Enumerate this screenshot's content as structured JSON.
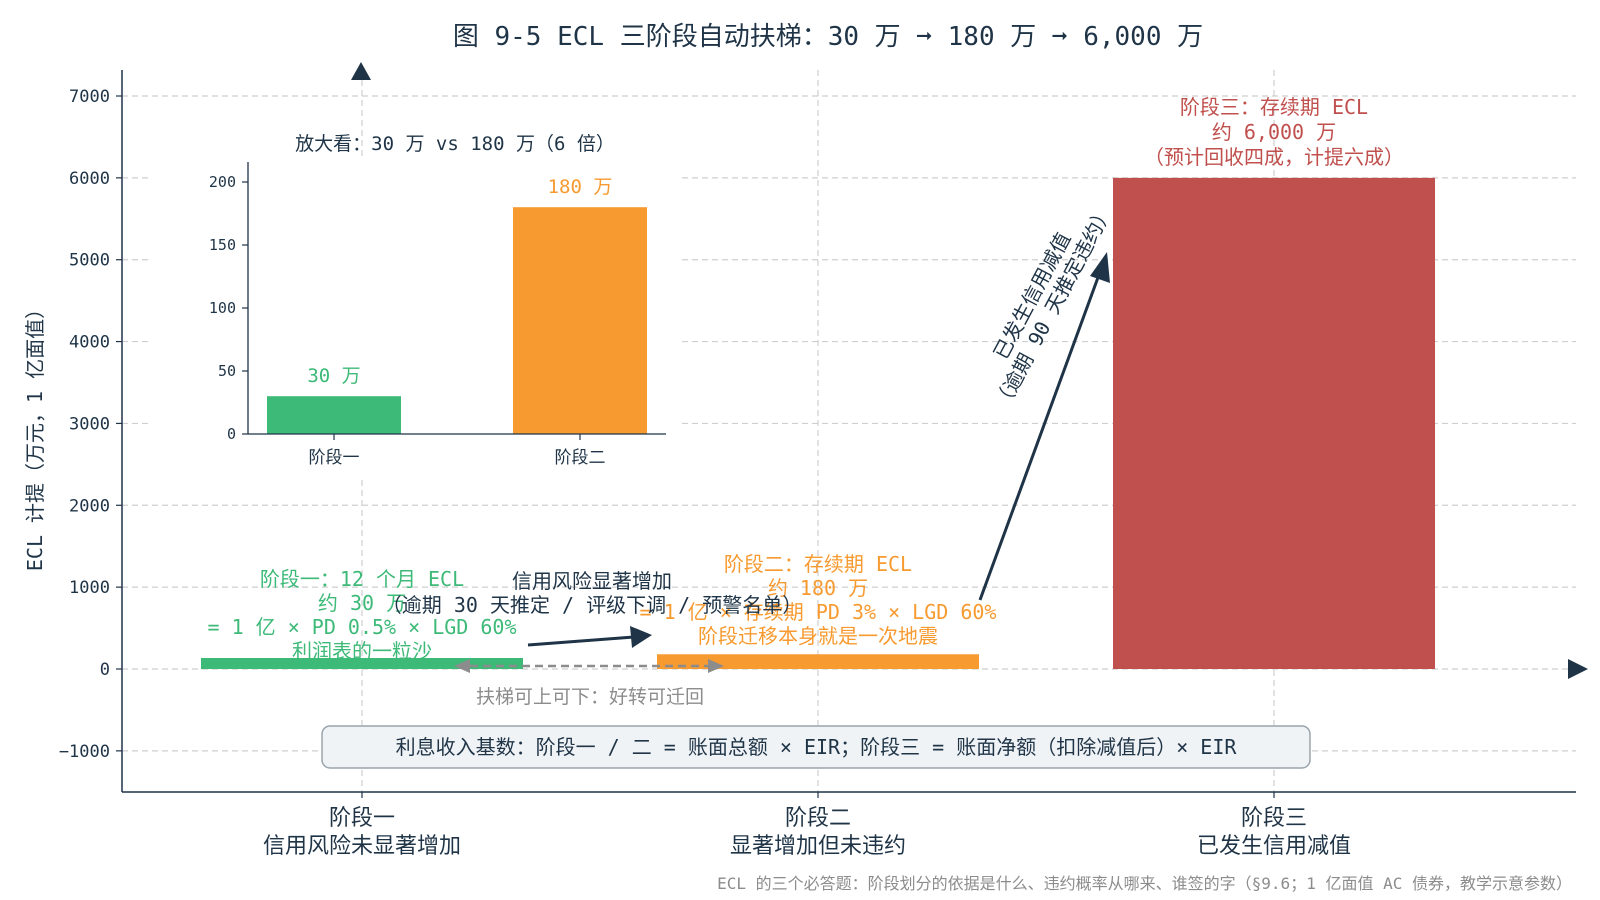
{
  "chart_data": [
    {
      "type": "bar",
      "title": "图 9-5 ECL 三阶段自动扶梯：30 万 ➞ 180 万 ➞ 6,000 万",
      "ylabel": "ECL 计提（万元，1 亿面值）",
      "ylim": [
        -1500,
        7300
      ],
      "yticks": [
        -1000,
        0,
        1000,
        2000,
        3000,
        4000,
        5000,
        6000,
        7000
      ],
      "grid": true,
      "categories": [
        {
          "name": "阶段一",
          "desc": "信用风险未显著增加"
        },
        {
          "name": "阶段二",
          "desc": "显著增加但未违约"
        },
        {
          "name": "阶段三",
          "desc": "已发生信用减值"
        }
      ],
      "values": [
        30,
        180,
        6000
      ],
      "colors": [
        "#3dba78",
        "#f79a30",
        "#c0504d"
      ],
      "annotations": {
        "stage1": [
          "阶段一：12 个月 ECL",
          "约 30 万",
          "= 1 亿 × PD 0.5% × LGD 60%",
          "利润表的一粒沙"
        ],
        "stage2": [
          "阶段二：存续期 ECL",
          "约 180 万",
          "= 1 亿 × 存续期 PD 3% × LGD 60%",
          "阶段迁移本身就是一次地震"
        ],
        "stage3": [
          "阶段三：存续期 ECL",
          "约 6,000 万",
          "（预计回收四成，计提六成）"
        ],
        "transition12": [
          "信用风险显著增加",
          "（逾期 30 天推定 / 评级下调 / 预警名单）"
        ],
        "transition23": [
          "已发生信用减值",
          "（逾期 90 天推定违约）"
        ],
        "escalator": "扶梯可上可下：好转可迁回",
        "interest_box": "利息收入基数：阶段一 / 二 = 账面总额 × EIR；阶段三 = 账面净额（扣除减值后）× EIR"
      },
      "footnote": "ECL 的三个必答题：阶段划分的依据是什么、违约概率从哪来、谁签的字（§9.6；1 亿面值 AC 债券，教学示意参数）"
    },
    {
      "type": "bar",
      "title": "放大看：30 万 vs 180 万（6 倍）",
      "categories": [
        "阶段一",
        "阶段二"
      ],
      "values": [
        30,
        180
      ],
      "value_labels": [
        "30 万",
        "180 万"
      ],
      "ylim": [
        0,
        215
      ],
      "yticks": [
        0,
        50,
        100,
        150,
        200
      ],
      "colors": [
        "#3dba78",
        "#f79a30"
      ]
    }
  ],
  "colors": {
    "text": "#1f3447",
    "axis": "#1f3447",
    "grid": "#cfcfcf",
    "muted": "#8c8c8c",
    "box_bg": "#f0f3f6",
    "box_border": "#9aa3ab"
  }
}
